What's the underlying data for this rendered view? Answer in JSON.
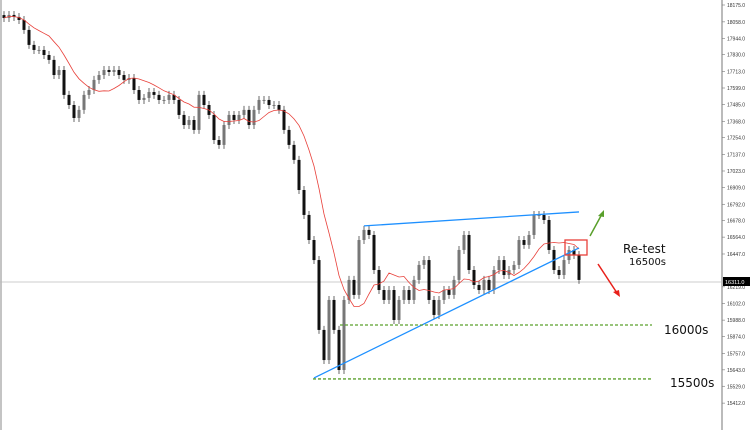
{
  "chart_data": {
    "type": "candlestick",
    "title": "",
    "xlabel": "",
    "ylabel": "",
    "ylim": [
      15412,
      18175
    ],
    "grid": false,
    "y_tick_labels": [
      "18175.0",
      "18058.0",
      "17944.0",
      "17830.0",
      "17713.0",
      "17599.0",
      "17485.0",
      "17368.0",
      "17254.0",
      "17137.0",
      "17023.0",
      "16909.0",
      "16792.0",
      "16678.0",
      "16564.0",
      "16447.0",
      "16219.0",
      "16102.0",
      "15988.0",
      "15874.0",
      "15757.0",
      "15643.0",
      "15529.0",
      "15412.0"
    ],
    "y_tick_values": [
      18175,
      18058,
      17944,
      17830,
      17713,
      17599,
      17485,
      17368,
      17254,
      17137,
      17023,
      16909,
      16792,
      16678,
      16564,
      16447,
      16219,
      16102,
      15988,
      15874,
      15757,
      15643,
      15529,
      15412
    ],
    "current_price_label": "16311.0",
    "current_price": 16311,
    "closes": [
      18085,
      18106,
      18092,
      18071,
      18002,
      17898,
      17863,
      17863,
      17828,
      17794,
      17689,
      17724,
      17551,
      17481,
      17391,
      17447,
      17551,
      17585,
      17655,
      17689,
      17724,
      17710,
      17724,
      17689,
      17655,
      17668,
      17585,
      17516,
      17530,
      17571,
      17551,
      17516,
      17516,
      17551,
      17516,
      17412,
      17342,
      17377,
      17308,
      17551,
      17481,
      17412,
      17238,
      17204,
      17342,
      17412,
      17377,
      17412,
      17447,
      17342,
      17447,
      17516,
      17516,
      17481,
      17481,
      17447,
      17308,
      17204,
      17100,
      16891,
      16718,
      16544,
      16405,
      15920,
      15711,
      16128,
      15920,
      15642,
      16128,
      16267,
      16163,
      16544,
      16614,
      16579,
      16336,
      16197,
      16128,
      16197,
      15989,
      16128,
      16197,
      16128,
      16267,
      16371,
      16405,
      16128,
      16024,
      16128,
      16197,
      16163,
      16267,
      16475,
      16579,
      16336,
      16232,
      16197,
      16267,
      16197,
      16336,
      16405,
      16301,
      16336,
      16371,
      16544,
      16510,
      16579,
      16718,
      16718,
      16683,
      16475,
      16336,
      16301,
      16405,
      16475,
      16440,
      16267
    ],
    "moving_average_period": 10,
    "trendlines": [
      {
        "from": [
          72,
          16642
        ],
        "to": [
          115,
          16739
        ],
        "color": "#1e90ff"
      },
      {
        "from": [
          62,
          15587
        ],
        "to": [
          115,
          16489
        ],
        "color": "#1e90ff"
      }
    ],
    "support_levels": [
      {
        "price": 15954,
        "label": "16000s",
        "color": "#5aa02c"
      },
      {
        "price": 15580,
        "label": "15500s",
        "color": "#5aa02c"
      }
    ],
    "annotations": {
      "retest_title": "Re-test",
      "retest_level": "16500s"
    },
    "colors": {
      "candle": "#111111",
      "ma": "#e8403a",
      "up_arrow": "#5aa02c",
      "down_arrow": "#e8201a",
      "box": "#e8403a"
    }
  }
}
